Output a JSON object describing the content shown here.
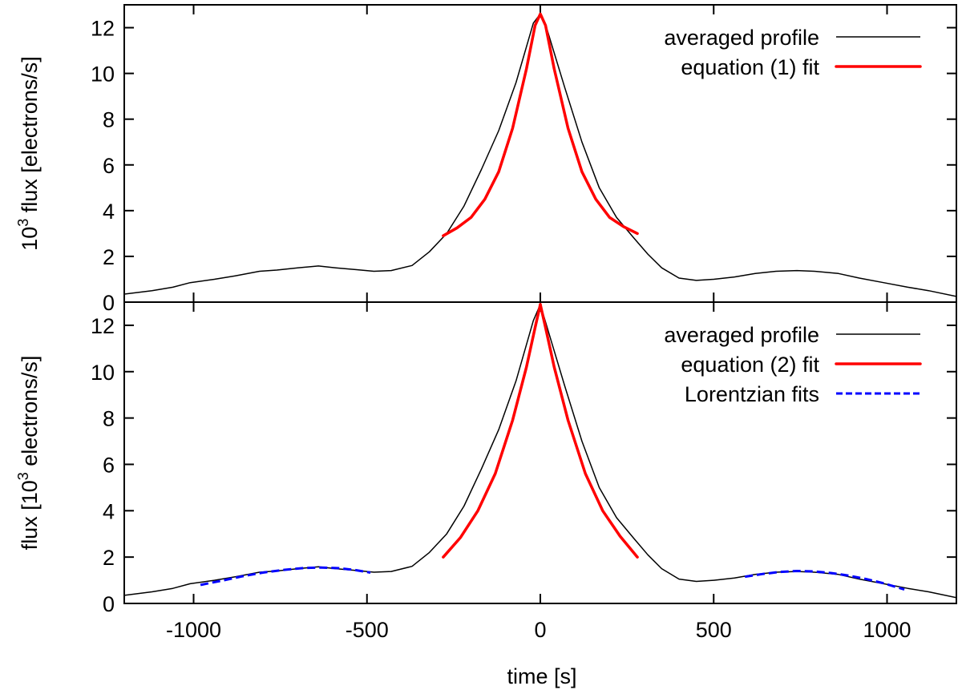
{
  "chart_data": {
    "type": "line",
    "xlabel": "time [s]",
    "xlim": [
      -1200,
      1200
    ],
    "xticks": [
      -1000,
      -500,
      0,
      500,
      1000
    ],
    "panels": [
      {
        "ylabel": {
          "base": "10",
          "sup": "3",
          "rest": " flux [electrons/s]"
        },
        "ylim": [
          0,
          13
        ],
        "yticks": [
          0,
          2,
          4,
          6,
          8,
          10,
          12
        ],
        "legend_position": "top-right",
        "series": [
          {
            "name": "averaged profile",
            "color": "#000000",
            "style": "solid",
            "x": [
              -1200,
              -1120,
              -1060,
              -1010,
              -940,
              -880,
              -810,
              -760,
              -700,
              -640,
              -590,
              -530,
              -480,
              -430,
              -370,
              -320,
              -270,
              -220,
              -170,
              -120,
              -70,
              -20,
              0,
              20,
              70,
              120,
              170,
              220,
              270,
              310,
              350,
              400,
              450,
              500,
              560,
              620,
              680,
              740,
              790,
              860,
              920,
              990,
              1060,
              1120,
              1200
            ],
            "y": [
              0.35,
              0.5,
              0.65,
              0.85,
              1.0,
              1.15,
              1.35,
              1.4,
              1.5,
              1.58,
              1.5,
              1.42,
              1.35,
              1.38,
              1.6,
              2.2,
              3.0,
              4.2,
              5.8,
              7.5,
              9.6,
              12.2,
              12.6,
              11.9,
              9.4,
              7.0,
              5.0,
              3.7,
              2.8,
              2.1,
              1.5,
              1.05,
              0.95,
              1.0,
              1.1,
              1.25,
              1.35,
              1.38,
              1.35,
              1.25,
              1.05,
              0.85,
              0.65,
              0.5,
              0.25
            ]
          },
          {
            "name": "equation (1) fit",
            "color": "#ff0000",
            "style": "solid-thick",
            "x": [
              -280,
              -240,
              -200,
              -160,
              -120,
              -80,
              -40,
              -15,
              0,
              15,
              40,
              80,
              120,
              160,
              200,
              240,
              280
            ],
            "y": [
              2.9,
              3.25,
              3.7,
              4.5,
              5.7,
              7.6,
              10.2,
              12.1,
              12.6,
              12.1,
              10.2,
              7.6,
              5.7,
              4.5,
              3.7,
              3.3,
              3.0
            ]
          }
        ]
      },
      {
        "ylabel": {
          "base": "flux [10",
          "sup": "3",
          "rest": " electrons/s]"
        },
        "ylim": [
          0,
          13
        ],
        "yticks": [
          0,
          2,
          4,
          6,
          8,
          10,
          12
        ],
        "legend_position": "top-right",
        "series": [
          {
            "name": "averaged profile",
            "color": "#000000",
            "style": "solid",
            "x": [
              -1200,
              -1120,
              -1060,
              -1010,
              -940,
              -880,
              -810,
              -760,
              -700,
              -640,
              -590,
              -530,
              -480,
              -430,
              -370,
              -320,
              -270,
              -220,
              -170,
              -120,
              -70,
              -20,
              0,
              20,
              70,
              120,
              170,
              220,
              270,
              310,
              350,
              400,
              450,
              500,
              560,
              620,
              680,
              740,
              790,
              860,
              920,
              990,
              1060,
              1120,
              1200
            ],
            "y": [
              0.35,
              0.5,
              0.65,
              0.85,
              1.0,
              1.15,
              1.35,
              1.4,
              1.5,
              1.58,
              1.5,
              1.42,
              1.35,
              1.38,
              1.6,
              2.2,
              3.0,
              4.2,
              5.8,
              7.5,
              9.6,
              12.2,
              12.9,
              11.9,
              9.4,
              7.0,
              5.0,
              3.7,
              2.8,
              2.1,
              1.5,
              1.05,
              0.95,
              1.0,
              1.1,
              1.25,
              1.35,
              1.38,
              1.35,
              1.25,
              1.05,
              0.85,
              0.65,
              0.5,
              0.25
            ]
          },
          {
            "name": "equation (2) fit",
            "color": "#ff0000",
            "style": "solid-thick",
            "segments": [
              {
                "x": [
                  -280,
                  -230,
                  -180,
                  -130,
                  -80,
                  -40,
                  -15,
                  0
                ],
                "y": [
                  2.0,
                  2.85,
                  4.0,
                  5.6,
                  7.9,
                  10.2,
                  11.9,
                  12.9
                ]
              },
              {
                "x": [
                  0,
                  15,
                  40,
                  80,
                  130,
                  180,
                  230,
                  280
                ],
                "y": [
                  12.9,
                  11.9,
                  10.2,
                  7.9,
                  5.6,
                  4.0,
                  2.9,
                  2.0
                ]
              }
            ]
          },
          {
            "name": "Lorentzian fits",
            "color": "#0000ff",
            "style": "dashed",
            "segments": [
              {
                "x": [
                  -980,
                  -920,
                  -860,
                  -800,
                  -740,
                  -680,
                  -630,
                  -580,
                  -530,
                  -490
                ],
                "y": [
                  0.8,
                  0.98,
                  1.17,
                  1.33,
                  1.45,
                  1.53,
                  1.55,
                  1.52,
                  1.43,
                  1.33
                ]
              },
              {
                "x": [
                  590,
                  640,
                  690,
                  740,
                  790,
                  840,
                  890,
                  940,
                  990,
                  1050
                ],
                "y": [
                  1.15,
                  1.27,
                  1.36,
                  1.4,
                  1.38,
                  1.31,
                  1.2,
                  1.05,
                  0.87,
                  0.6
                ]
              }
            ]
          }
        ]
      }
    ]
  }
}
